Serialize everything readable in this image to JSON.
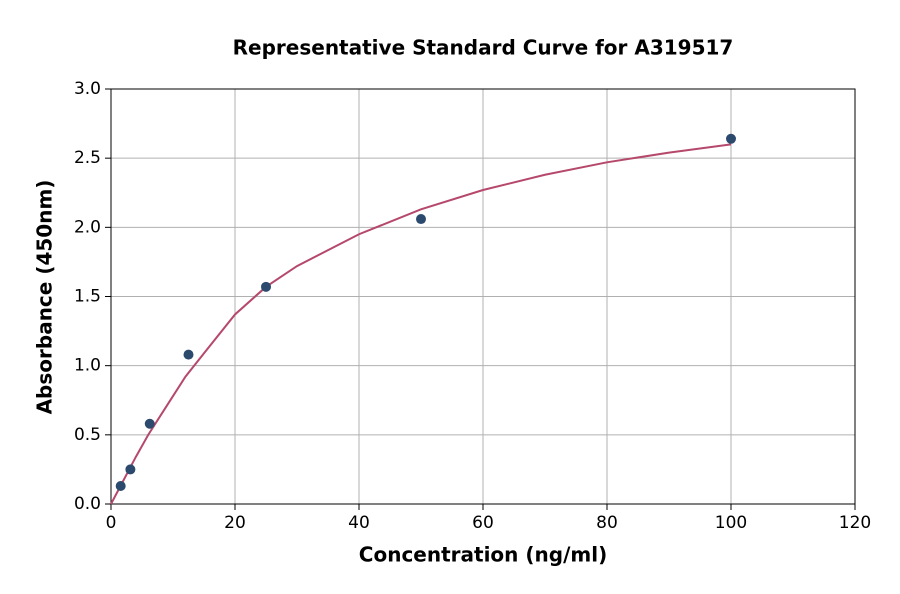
{
  "chart_data": {
    "type": "scatter",
    "title": "Representative Standard Curve for A319517",
    "x_label": "Concentration (ng/ml)",
    "y_label": "Absorbance (450nm)",
    "xlim": [
      0,
      120
    ],
    "ylim": [
      0,
      3
    ],
    "xticks": [
      0,
      20,
      40,
      60,
      80,
      100,
      120
    ],
    "yticks": [
      {
        "value": 0,
        "label": "0.0"
      },
      {
        "value": 0.5,
        "label": "0.5"
      },
      {
        "value": 1,
        "label": "1.0"
      },
      {
        "value": 1.5,
        "label": "1.5"
      },
      {
        "value": 2,
        "label": "2.0"
      },
      {
        "value": 2.5,
        "label": "2.5"
      },
      {
        "value": 3,
        "label": "3.0"
      }
    ],
    "grid": true,
    "series": [
      {
        "style": "line",
        "color": "#b5486b",
        "x": [
          0,
          2,
          4,
          6,
          8,
          10,
          12,
          15,
          20,
          25,
          30,
          40,
          50,
          60,
          70,
          80,
          90,
          100
        ],
        "values": [
          0,
          0.17,
          0.34,
          0.5,
          0.64,
          0.78,
          0.92,
          1.09,
          1.37,
          1.57,
          1.72,
          1.95,
          2.13,
          2.27,
          2.38,
          2.47,
          2.54,
          2.6
        ]
      },
      {
        "style": "markers",
        "color": "#2c4a6e",
        "x": [
          1.5625,
          3.125,
          6.25,
          12.5,
          25,
          50,
          100
        ],
        "values": [
          0.13,
          0.25,
          0.58,
          1.08,
          1.57,
          2.06,
          2.64
        ]
      }
    ]
  }
}
